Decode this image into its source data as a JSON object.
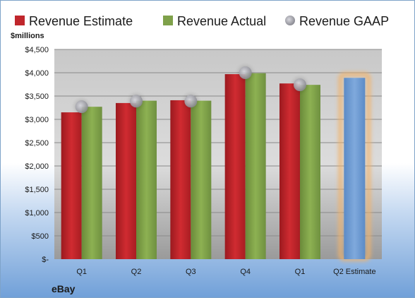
{
  "chart_data": {
    "type": "bar",
    "company": "eBay",
    "unit_label": "$millions",
    "categories": [
      "Q1",
      "Q2",
      "Q3",
      "Q4",
      "Q1",
      "Q2 Estimate"
    ],
    "ylim": [
      0,
      4500
    ],
    "yticks": [
      0,
      500,
      1000,
      1500,
      2000,
      2500,
      3000,
      3500,
      4000,
      4500
    ],
    "ytick_labels": [
      "$-",
      "$500",
      "$1,000",
      "$1,500",
      "$2,000",
      "$2,500",
      "$3,000",
      "$3,500",
      "$4,000",
      "$4,500"
    ],
    "grid": true,
    "legend_position": "top",
    "series": [
      {
        "name": "Revenue Estimate",
        "kind": "bar",
        "color": "#c0262c",
        "values": [
          3150,
          3350,
          3410,
          3970,
          3770,
          null
        ]
      },
      {
        "name": "Revenue Actual",
        "kind": "bar",
        "color": "#7fa14a",
        "values": [
          3270,
          3400,
          3400,
          3990,
          3740,
          null
        ]
      },
      {
        "name": "Revenue GAAP",
        "kind": "marker",
        "color": "#a0a0a8",
        "values": [
          3270,
          3390,
          3390,
          4000,
          3740,
          null
        ]
      }
    ],
    "estimate": {
      "category": "Q2 Estimate",
      "value": 3890,
      "color": "#6f9fd8",
      "glow": "#f2b36b"
    }
  }
}
